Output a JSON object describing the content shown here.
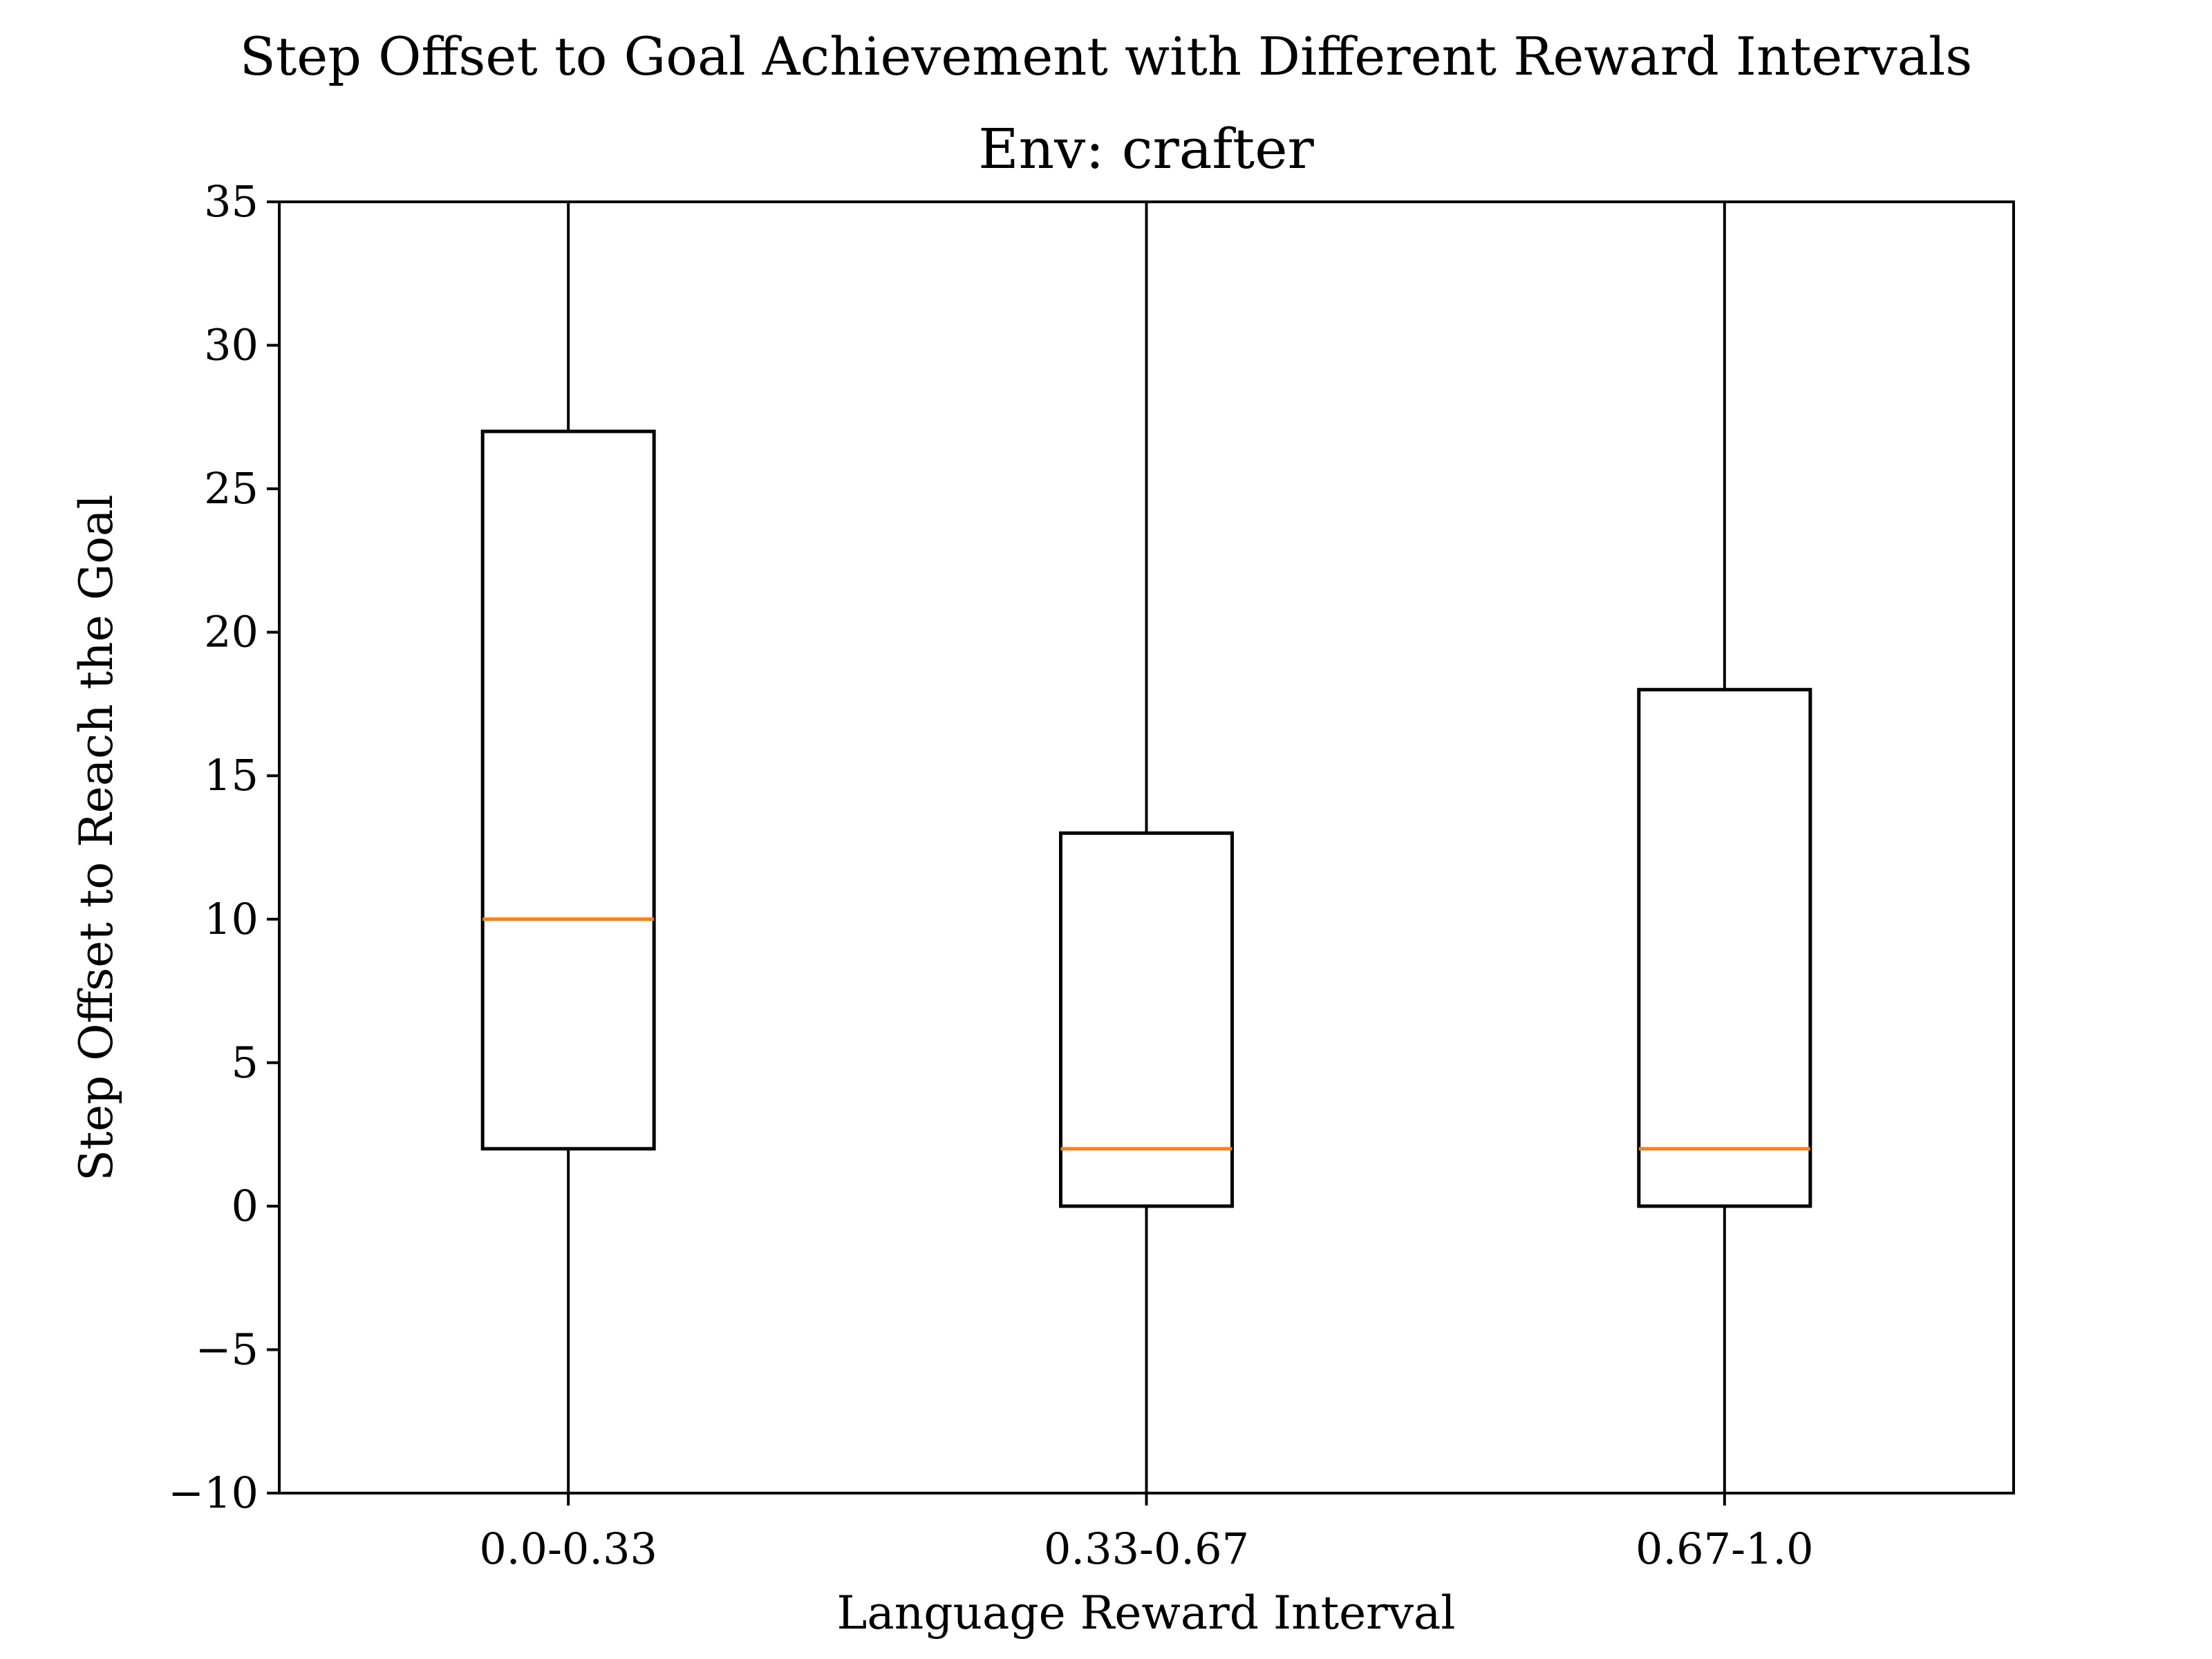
{
  "chart_data": {
    "type": "box",
    "title": "Step Offset to Goal Achievement with Different Reward Intervals",
    "subtitle": "Env: crafter",
    "xlabel": "Language Reward Interval",
    "ylabel": "Step Offset to Reach the Goal",
    "ylim": [
      -10,
      35
    ],
    "yticks": [
      -10,
      -5,
      0,
      5,
      10,
      15,
      20,
      25,
      30,
      35
    ],
    "ytick_labels": [
      "−10",
      "−5",
      "0",
      "5",
      "10",
      "15",
      "20",
      "25",
      "30",
      "35"
    ],
    "categories": [
      "0.0-0.33",
      "0.33-0.67",
      "0.67-1.0"
    ],
    "boxes": [
      {
        "whisker_low": -10,
        "q1": 2,
        "median": 10,
        "q3": 27,
        "whisker_high": 35
      },
      {
        "whisker_low": -10,
        "q1": 0,
        "median": 2,
        "q3": 13,
        "whisker_high": 35
      },
      {
        "whisker_low": -10,
        "q1": 0,
        "median": 2,
        "q3": 18,
        "whisker_high": 35
      }
    ],
    "grid": false,
    "colors": {
      "box": "#000000",
      "median": "#ff7f0e"
    }
  }
}
